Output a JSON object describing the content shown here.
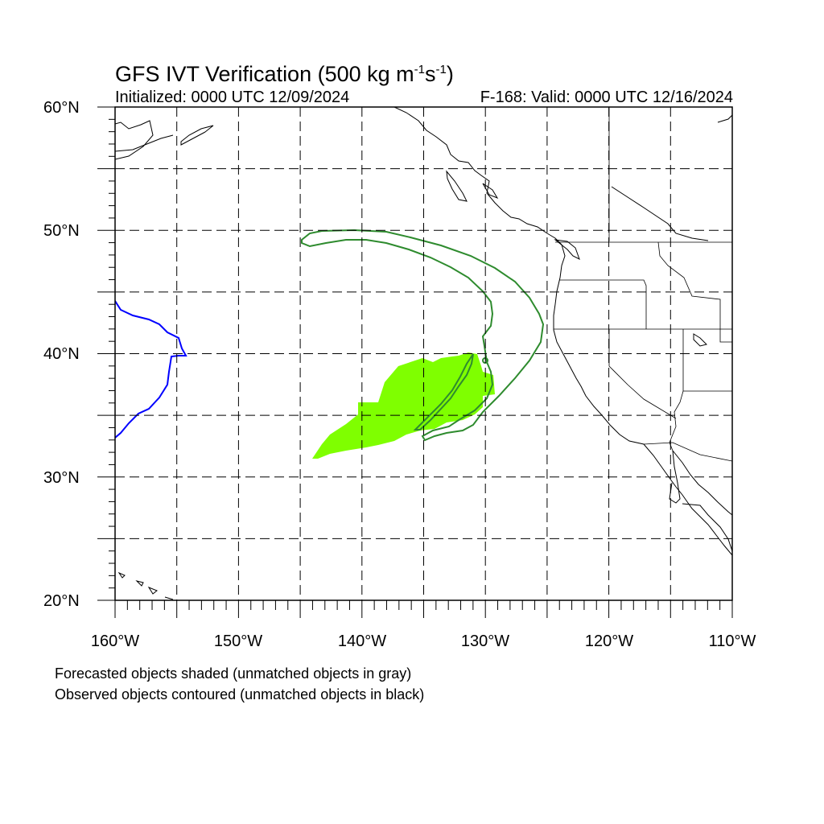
{
  "title": {
    "main": "GFS IVT Verification (500 kg m",
    "sup1": "-1",
    "mid": "s",
    "sup2": "-1",
    "end": ")"
  },
  "subtitle_left": "Initialized: 0000 UTC 12/09/2024",
  "subtitle_right": "F-168: Valid: 0000 UTC 12/16/2024",
  "lat_labels": [
    "60°N",
    "50°N",
    "40°N",
    "30°N",
    "20°N"
  ],
  "lon_labels": [
    "160°W",
    "150°W",
    "140°W",
    "130°W",
    "120°W",
    "110°W"
  ],
  "notes": [
    "Forecasted objects shaded (unmatched objects in gray)",
    "Observed objects contoured (unmatched objects in black)"
  ],
  "colors": {
    "forecast_fill": "#7fff00",
    "observed_contour": "#2e8b2e",
    "unmatched_contour": "#0000ff",
    "coastline": "#000000",
    "grid": "#000000"
  },
  "map_extent": {
    "lon_min": -160,
    "lon_max": -110,
    "lat_min": 20,
    "lat_max": 60
  }
}
